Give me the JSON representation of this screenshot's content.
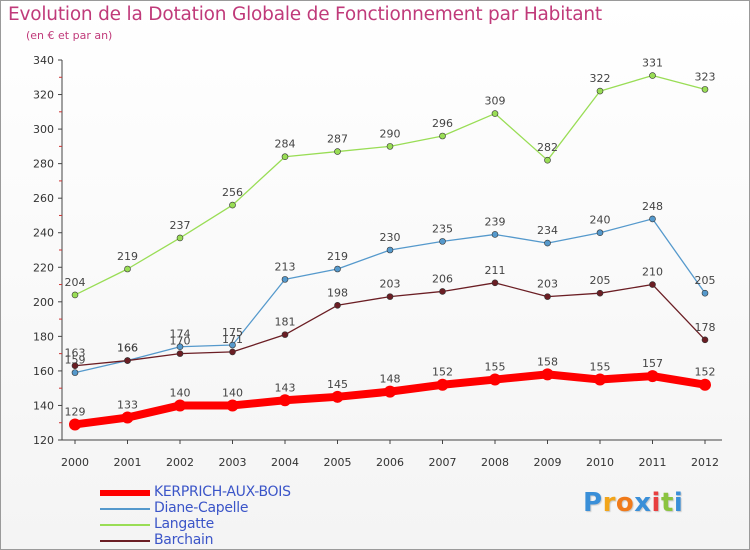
{
  "title": "Evolution de la Dotation Globale de Fonctionnement par Habitant",
  "subtitle": "(en € et par an)",
  "colors": {
    "title": "#c03a7a",
    "legend_text": "#3b55c8",
    "axis": "#444444",
    "tick_label": "#333333",
    "data_label": "#444444"
  },
  "chart_data": {
    "type": "line",
    "title": "Evolution de la Dotation Globale de Fonctionnement par Habitant",
    "subtitle": "(en € et par an)",
    "xlabel": "",
    "ylabel": "",
    "x": [
      "2000",
      "2001",
      "2002",
      "2003",
      "2004",
      "2005",
      "2006",
      "2007",
      "2008",
      "2009",
      "2010",
      "2011",
      "2012"
    ],
    "ylim": [
      120,
      340
    ],
    "yticks": [
      120,
      140,
      160,
      180,
      200,
      220,
      240,
      260,
      280,
      300,
      320,
      340
    ],
    "grid": false,
    "legend_position": "bottom-left",
    "series": [
      {
        "name": "Langatte",
        "color": "#99dd55",
        "values": [
          204,
          219,
          237,
          256,
          284,
          287,
          290,
          296,
          309,
          282,
          322,
          331,
          323
        ]
      },
      {
        "name": "Diane-Capelle",
        "color": "#5599cc",
        "values": [
          159,
          166,
          174,
          175,
          213,
          219,
          230,
          235,
          239,
          234,
          240,
          248,
          205
        ]
      },
      {
        "name": "Barchain",
        "color": "#6b1e24",
        "values": [
          163,
          166,
          170,
          171,
          181,
          198,
          203,
          206,
          211,
          203,
          205,
          210,
          178
        ]
      },
      {
        "name": "KERPRICH-AUX-BOIS",
        "color": "#ff0000",
        "values": [
          129,
          133,
          140,
          140,
          143,
          145,
          148,
          152,
          155,
          158,
          155,
          157,
          152
        ]
      }
    ]
  },
  "legend": [
    {
      "label": "KERPRICH-AUX-BOIS",
      "color": "#ff0000"
    },
    {
      "label": "Diane-Capelle",
      "color": "#5599cc"
    },
    {
      "label": "Langatte",
      "color": "#99dd55"
    },
    {
      "label": "Barchain",
      "color": "#6b1e24"
    }
  ],
  "logo": {
    "letters": [
      "P",
      "r",
      "o",
      "x",
      "i",
      "t",
      "i"
    ],
    "colors": [
      "#3a8fd8",
      "#f2a51a",
      "#f07a1a",
      "#3a8fd8",
      "#e83f3f",
      "#8bc43f",
      "#3a8fd8"
    ]
  }
}
